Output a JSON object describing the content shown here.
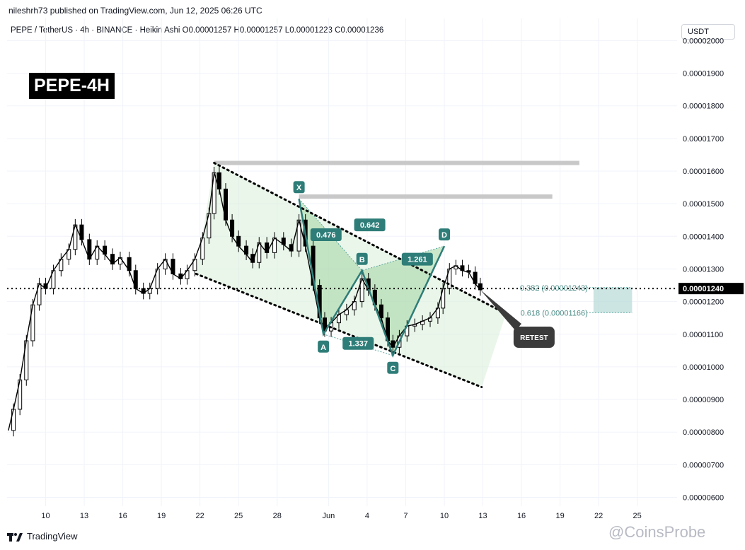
{
  "header": {
    "publisher": "nileshrh73 published on TradingView.com, Jun 12, 2025 06:26 UTC",
    "symbol_line": "PEPE / TetherUS · 4h · BINANCE · Heikin Ashi  O0.00001257  H0.00001257  L0.00001223  C0.00001236",
    "tag": "PEPE-4H",
    "currency": "USDT"
  },
  "footer": {
    "brand": "TradingView",
    "watermark": "@CoinsProbe"
  },
  "chart_data": {
    "type": "line",
    "price_axis_labels": [
      "0.00002000",
      "0.00001900",
      "0.00001800",
      "0.00001700",
      "0.00001600",
      "0.00001500",
      "0.00001400",
      "0.00001300",
      "0.00001200",
      "0.00001100",
      "0.00001000",
      "0.00000900",
      "0.00000800",
      "0.00000700",
      "0.00000600"
    ],
    "price_axis_values": [
      2000,
      1900,
      1800,
      1700,
      1600,
      1500,
      1400,
      1300,
      1200,
      1100,
      1000,
      900,
      800,
      700,
      600
    ],
    "ylim": [
      573,
      2068
    ],
    "x_axis_labels": [
      "10",
      "13",
      "16",
      "19",
      "22",
      "25",
      "28",
      "Jun",
      "4",
      "7",
      "10",
      "13",
      "16",
      "19",
      "22",
      "25"
    ],
    "x_axis_days": [
      10,
      13,
      16,
      19,
      22,
      25,
      28,
      32,
      35,
      38,
      41,
      44,
      47,
      50,
      53,
      56
    ],
    "xlim": [
      7.0,
      59.1
    ],
    "last_price": {
      "label": "0.00001240",
      "value": 1240
    },
    "fib_levels": [
      {
        "label": "0.382 (0.00001243)",
        "value": 1243
      },
      {
        "label": "0.618 (0.00001166)",
        "value": 1166
      }
    ],
    "price_path": [
      {
        "day": 7.1,
        "price": 805
      },
      {
        "day": 7.5,
        "price": 870
      },
      {
        "day": 8.0,
        "price": 960
      },
      {
        "day": 8.5,
        "price": 1080
      },
      {
        "day": 9.0,
        "price": 1190
      },
      {
        "day": 9.5,
        "price": 1255
      },
      {
        "day": 10.0,
        "price": 1240
      },
      {
        "day": 10.6,
        "price": 1295
      },
      {
        "day": 11.2,
        "price": 1330
      },
      {
        "day": 11.8,
        "price": 1360
      },
      {
        "day": 12.3,
        "price": 1435
      },
      {
        "day": 12.8,
        "price": 1390
      },
      {
        "day": 13.4,
        "price": 1330
      },
      {
        "day": 14.0,
        "price": 1370
      },
      {
        "day": 14.6,
        "price": 1345
      },
      {
        "day": 15.2,
        "price": 1315
      },
      {
        "day": 15.8,
        "price": 1335
      },
      {
        "day": 16.5,
        "price": 1295
      },
      {
        "day": 17.0,
        "price": 1240
      },
      {
        "day": 17.6,
        "price": 1225
      },
      {
        "day": 18.1,
        "price": 1240
      },
      {
        "day": 18.7,
        "price": 1300
      },
      {
        "day": 19.3,
        "price": 1330
      },
      {
        "day": 19.9,
        "price": 1285
      },
      {
        "day": 20.5,
        "price": 1270
      },
      {
        "day": 21.0,
        "price": 1295
      },
      {
        "day": 21.6,
        "price": 1330
      },
      {
        "day": 22.2,
        "price": 1395
      },
      {
        "day": 22.7,
        "price": 1470
      },
      {
        "day": 23.1,
        "price": 1595
      },
      {
        "day": 23.5,
        "price": 1545
      },
      {
        "day": 24.0,
        "price": 1450
      },
      {
        "day": 24.5,
        "price": 1400
      },
      {
        "day": 25.0,
        "price": 1370
      },
      {
        "day": 25.6,
        "price": 1345
      },
      {
        "day": 26.1,
        "price": 1320
      },
      {
        "day": 26.6,
        "price": 1380
      },
      {
        "day": 27.2,
        "price": 1350
      },
      {
        "day": 27.8,
        "price": 1395
      },
      {
        "day": 28.5,
        "price": 1375
      },
      {
        "day": 29.1,
        "price": 1355
      },
      {
        "day": 29.7,
        "price": 1450
      },
      {
        "day": 30.2,
        "price": 1370
      },
      {
        "day": 30.8,
        "price": 1250
      },
      {
        "day": 31.3,
        "price": 1150
      },
      {
        "day": 31.7,
        "price": 1110
      },
      {
        "day": 32.2,
        "price": 1135
      },
      {
        "day": 32.8,
        "price": 1160
      },
      {
        "day": 33.4,
        "price": 1175
      },
      {
        "day": 34.0,
        "price": 1200
      },
      {
        "day": 34.6,
        "price": 1270
      },
      {
        "day": 35.1,
        "price": 1235
      },
      {
        "day": 35.6,
        "price": 1190
      },
      {
        "day": 36.1,
        "price": 1150
      },
      {
        "day": 36.6,
        "price": 1080
      },
      {
        "day": 37.0,
        "price": 1060
      },
      {
        "day": 37.5,
        "price": 1095
      },
      {
        "day": 38.1,
        "price": 1125
      },
      {
        "day": 38.7,
        "price": 1130
      },
      {
        "day": 39.3,
        "price": 1140
      },
      {
        "day": 39.9,
        "price": 1150
      },
      {
        "day": 40.5,
        "price": 1180
      },
      {
        "day": 40.9,
        "price": 1240
      },
      {
        "day": 41.4,
        "price": 1300
      },
      {
        "day": 41.9,
        "price": 1310
      },
      {
        "day": 42.4,
        "price": 1295
      },
      {
        "day": 42.9,
        "price": 1290
      },
      {
        "day": 43.4,
        "price": 1255
      },
      {
        "day": 43.8,
        "price": 1236
      }
    ],
    "resistance_levels": [
      {
        "value": 1625,
        "from_day": 23.1,
        "to_day": 51.5
      },
      {
        "value": 1522,
        "from_day": 29.7,
        "to_day": 49.4
      }
    ],
    "channel": {
      "upper": {
        "from": {
          "day": 23.1,
          "price": 1625
        },
        "to": {
          "day": 45.8,
          "price": 1163
        }
      },
      "lower": {
        "from": {
          "day": 21.7,
          "price": 1285
        },
        "to": {
          "day": 43.9,
          "price": 938
        }
      }
    },
    "harmonic_points": [
      {
        "label": "X",
        "day": 29.7,
        "price": 1515
      },
      {
        "label": "A",
        "day": 31.6,
        "price": 1100
      },
      {
        "label": "B",
        "day": 34.6,
        "price": 1295
      },
      {
        "label": "C",
        "day": 37.0,
        "price": 1035
      },
      {
        "label": "D",
        "day": 41.0,
        "price": 1370
      }
    ],
    "ratios": [
      {
        "label": "0.476",
        "day": 31.8,
        "price": 1405
      },
      {
        "label": "0.642",
        "day": 35.2,
        "price": 1435
      },
      {
        "label": "1.261",
        "day": 38.9,
        "price": 1330
      },
      {
        "label": "1.337",
        "day": 34.3,
        "price": 1072
      }
    ],
    "projection_zone": {
      "top": 1243,
      "bottom": 1166,
      "from_day": 52.6,
      "to_day": 55.6
    },
    "retest_label": "RETEST"
  }
}
